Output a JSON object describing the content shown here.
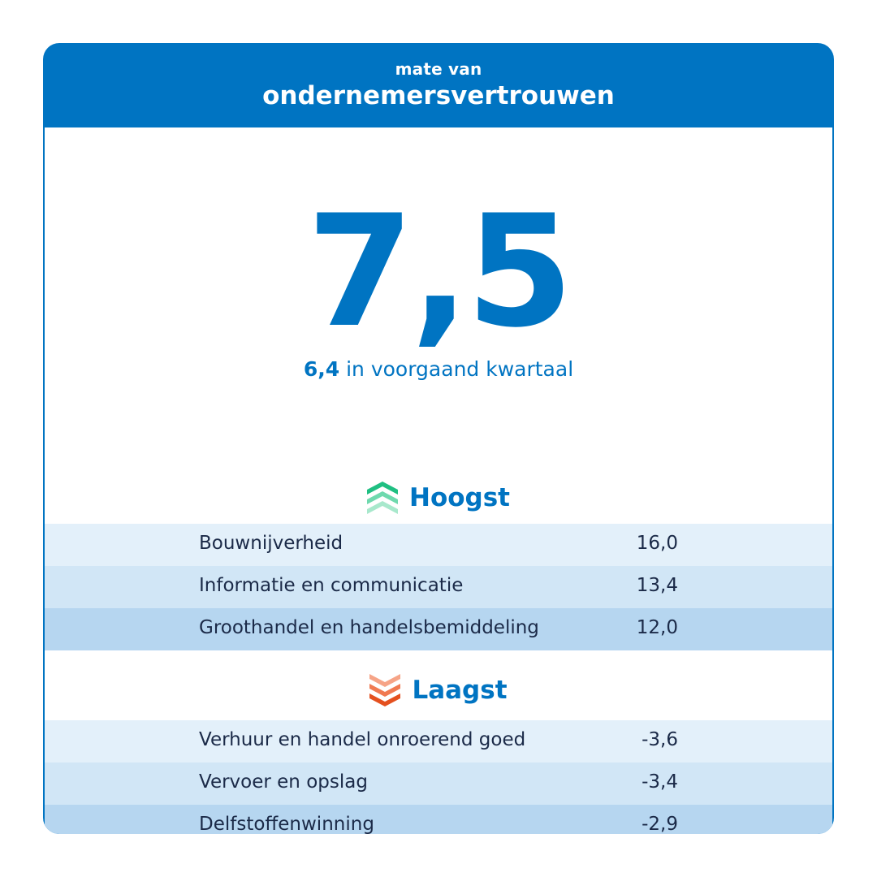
{
  "header": {
    "subtitle": "mate van",
    "title": "ondernemersvertrouwen"
  },
  "main_value": "7,5",
  "previous": {
    "value": "6,4",
    "text": "in voorgaand kwartaal"
  },
  "highest": {
    "title": "Hoogst",
    "icon": "chevrons-up-icon",
    "icon_colors": [
      "#1fbf82",
      "#6fd9ae",
      "#a8e8cc"
    ],
    "rows": [
      {
        "name": "Bouwnijverheid",
        "value": "16,0"
      },
      {
        "name": "Informatie en communicatie",
        "value": "13,4"
      },
      {
        "name": "Groothandel en handelsbemiddeling",
        "value": "12,0"
      }
    ]
  },
  "lowest": {
    "title": "Laagst",
    "icon": "chevrons-down-icon",
    "icon_colors": [
      "#f6a487",
      "#f07a52",
      "#e4501f"
    ],
    "rows": [
      {
        "name": "Verhuur en handel onroerend goed",
        "value": "-3,6"
      },
      {
        "name": "Vervoer en opslag",
        "value": "-3,4"
      },
      {
        "name": "Delfstoffenwinning",
        "value": "-2,9"
      }
    ]
  },
  "colors": {
    "brand_blue": "#0074c2",
    "text_dark": "#1b2a48",
    "row_light": "#e3f0fa",
    "row_mid": "#d1e6f6",
    "row_dark": "#b6d6f0"
  }
}
